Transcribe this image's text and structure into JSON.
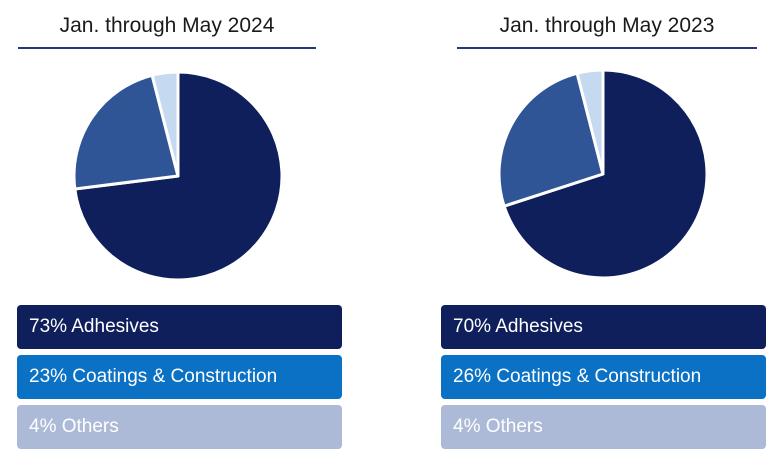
{
  "chart_data": [
    {
      "type": "pie",
      "title": "Jan. through May 2024",
      "slices": [
        {
          "label": "Adhesives",
          "value": 73,
          "color": "#0e1f5b"
        },
        {
          "label": "Coatings & Construction",
          "value": 23,
          "color": "#2f5597"
        },
        {
          "label": "Others",
          "value": 4,
          "color": "#c5d9f1"
        }
      ],
      "legend": [
        {
          "text": "73% Adhesives",
          "color": "#0e1f5b"
        },
        {
          "text": "23% Coatings & Construction",
          "color": "#0a71c5"
        },
        {
          "text": "4% Others",
          "color": "#acbad8"
        }
      ]
    },
    {
      "type": "pie",
      "title": "Jan. through May 2023",
      "slices": [
        {
          "label": "Adhesives",
          "value": 70,
          "color": "#0e1f5b"
        },
        {
          "label": "Coatings & Construction",
          "value": 26,
          "color": "#2f5597"
        },
        {
          "label": "Others",
          "value": 4,
          "color": "#c5d9f1"
        }
      ],
      "legend": [
        {
          "text": "70% Adhesives",
          "color": "#0e1f5b"
        },
        {
          "text": "26% Coatings & Construction",
          "color": "#0a71c5"
        },
        {
          "text": "4% Others",
          "color": "#acbad8"
        }
      ]
    }
  ]
}
